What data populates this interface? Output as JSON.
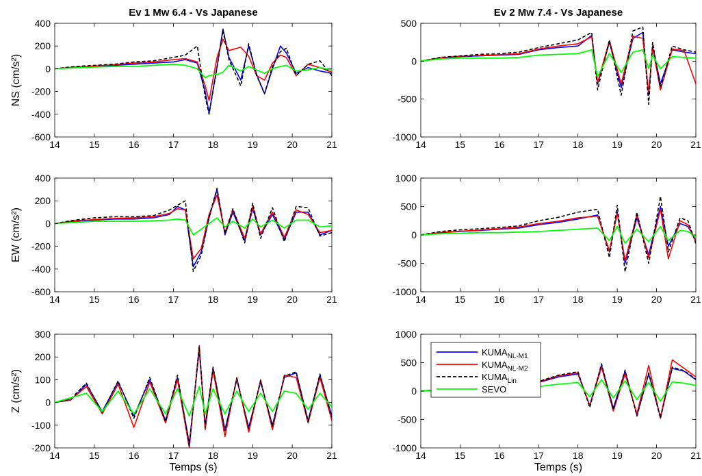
{
  "chart_data": [
    {
      "type": "line",
      "title": "Ev 1 Mw 6.4 - Vs Japanese",
      "xlabel": "",
      "ylabel": "NS (cm/s²)",
      "xlim": [
        14,
        21
      ],
      "ylim": [
        -600,
        400
      ],
      "xticks": [
        14,
        15,
        16,
        17,
        18,
        19,
        20,
        21
      ],
      "yticks": [
        -600,
        -400,
        -200,
        0,
        200,
        400
      ],
      "x": [
        14.0,
        14.5,
        15.0,
        15.5,
        16.0,
        16.5,
        17.0,
        17.3,
        17.6,
        17.8,
        17.9,
        18.1,
        18.25,
        18.4,
        18.7,
        18.9,
        19.1,
        19.3,
        19.5,
        19.7,
        19.85,
        20.1,
        20.4,
        20.7,
        21.0
      ],
      "series": [
        {
          "name": "KUMA_NL-M1",
          "values": [
            0,
            10,
            20,
            30,
            40,
            50,
            60,
            80,
            50,
            -200,
            -390,
            20,
            350,
            100,
            -100,
            200,
            -50,
            -220,
            0,
            200,
            140,
            -40,
            10,
            -20,
            -40
          ]
        },
        {
          "name": "KUMA_NL-M2",
          "values": [
            0,
            15,
            25,
            35,
            50,
            60,
            80,
            90,
            60,
            -150,
            -280,
            100,
            260,
            160,
            190,
            110,
            -60,
            -100,
            50,
            120,
            100,
            -60,
            40,
            10,
            -30
          ]
        },
        {
          "name": "KUMA_Lin",
          "values": [
            0,
            20,
            30,
            40,
            60,
            70,
            100,
            120,
            200,
            -250,
            -400,
            10,
            340,
            80,
            -150,
            220,
            -60,
            -220,
            20,
            150,
            180,
            -60,
            40,
            70,
            -60
          ]
        },
        {
          "name": "SEVO",
          "values": [
            0,
            8,
            15,
            20,
            20,
            30,
            40,
            30,
            0,
            -80,
            -60,
            -50,
            -30,
            30,
            -20,
            20,
            -10,
            -40,
            0,
            20,
            30,
            -20,
            -10,
            10,
            -10
          ]
        }
      ]
    },
    {
      "type": "line",
      "title": "Ev 2 Mw 7.4 - Vs Japanese",
      "xlabel": "",
      "ylabel": "",
      "xlim": [
        14,
        21
      ],
      "ylim": [
        -1000,
        500
      ],
      "xticks": [
        14,
        15,
        16,
        17,
        18,
        19,
        20,
        21
      ],
      "yticks": [
        -1000,
        -500,
        0,
        500
      ],
      "x": [
        14.0,
        14.5,
        15.0,
        15.5,
        16.0,
        16.5,
        17.0,
        17.5,
        18.0,
        18.35,
        18.5,
        18.8,
        19.1,
        19.4,
        19.65,
        19.8,
        19.9,
        20.1,
        20.4,
        20.7,
        21.0
      ],
      "series": [
        {
          "name": "KUMA_NL-M1",
          "values": [
            0,
            40,
            60,
            70,
            80,
            90,
            150,
            180,
            200,
            340,
            -300,
            250,
            -350,
            300,
            380,
            -450,
            200,
            -300,
            150,
            120,
            100
          ]
        },
        {
          "name": "KUMA_NL-M2",
          "values": [
            0,
            45,
            65,
            75,
            85,
            100,
            160,
            200,
            230,
            320,
            -280,
            270,
            -300,
            330,
            300,
            -420,
            180,
            -380,
            160,
            140,
            -300
          ]
        },
        {
          "name": "KUMA_Lin",
          "values": [
            0,
            50,
            70,
            90,
            100,
            120,
            180,
            230,
            280,
            380,
            -380,
            280,
            -450,
            400,
            450,
            -570,
            250,
            -350,
            200,
            150,
            120
          ]
        },
        {
          "name": "SEVO",
          "values": [
            0,
            30,
            40,
            40,
            40,
            50,
            80,
            90,
            100,
            150,
            -200,
            100,
            -150,
            120,
            150,
            -100,
            80,
            -100,
            60,
            50,
            40
          ]
        }
      ]
    },
    {
      "type": "line",
      "title": "",
      "xlabel": "",
      "ylabel": "EW (cm/s²)",
      "xlim": [
        14,
        21
      ],
      "ylim": [
        -600,
        400
      ],
      "xticks": [
        14,
        15,
        16,
        17,
        18,
        19,
        20,
        21
      ],
      "yticks": [
        -600,
        -400,
        -200,
        0,
        200,
        400
      ],
      "x": [
        14.0,
        14.5,
        15.0,
        15.5,
        16.0,
        16.5,
        16.9,
        17.1,
        17.3,
        17.5,
        17.7,
        17.9,
        18.1,
        18.3,
        18.5,
        18.8,
        19.0,
        19.2,
        19.5,
        19.8,
        20.1,
        20.4,
        20.7,
        21.0
      ],
      "series": [
        {
          "name": "KUMA_NL-M1",
          "values": [
            0,
            20,
            30,
            40,
            40,
            50,
            80,
            150,
            120,
            -380,
            -250,
            50,
            300,
            -100,
            100,
            -150,
            130,
            -100,
            80,
            -140,
            100,
            100,
            -100,
            -60
          ]
        },
        {
          "name": "KUMA_NL-M2",
          "values": [
            0,
            25,
            35,
            45,
            50,
            60,
            90,
            130,
            120,
            -310,
            -220,
            80,
            250,
            -80,
            120,
            -130,
            150,
            -90,
            100,
            -120,
            120,
            80,
            -80,
            -60
          ]
        },
        {
          "name": "KUMA_Lin",
          "values": [
            0,
            30,
            50,
            60,
            60,
            70,
            120,
            160,
            200,
            -420,
            -280,
            60,
            310,
            -90,
            130,
            -170,
            180,
            -130,
            140,
            -160,
            150,
            140,
            -110,
            -80
          ]
        },
        {
          "name": "SEVO",
          "values": [
            0,
            10,
            20,
            20,
            20,
            25,
            30,
            40,
            30,
            -100,
            -50,
            0,
            50,
            -30,
            20,
            -40,
            40,
            -30,
            30,
            -40,
            30,
            30,
            -30,
            -20
          ]
        }
      ]
    },
    {
      "type": "line",
      "title": "",
      "xlabel": "",
      "ylabel": "",
      "xlim": [
        14,
        21
      ],
      "ylim": [
        -1000,
        1000
      ],
      "xticks": [
        14,
        15,
        16,
        17,
        18,
        19,
        20,
        21
      ],
      "yticks": [
        -1000,
        -500,
        0,
        500,
        1000
      ],
      "x": [
        14.0,
        14.5,
        15.0,
        15.5,
        16.0,
        16.5,
        17.0,
        17.5,
        18.0,
        18.5,
        18.8,
        19.0,
        19.2,
        19.5,
        19.8,
        20.1,
        20.3,
        20.6,
        20.8,
        21.0
      ],
      "series": [
        {
          "name": "KUMA_NL-M1",
          "values": [
            0,
            40,
            60,
            80,
            100,
            120,
            180,
            220,
            280,
            350,
            -300,
            400,
            -500,
            300,
            -350,
            500,
            -200,
            200,
            150,
            -100
          ]
        },
        {
          "name": "KUMA_NL-M2",
          "values": [
            0,
            45,
            65,
            85,
            110,
            140,
            200,
            240,
            300,
            330,
            -280,
            380,
            -450,
            350,
            -400,
            450,
            -420,
            250,
            180,
            -120
          ]
        },
        {
          "name": "KUMA_Lin",
          "values": [
            0,
            60,
            90,
            110,
            130,
            160,
            250,
            310,
            400,
            450,
            -400,
            520,
            -650,
            400,
            -500,
            680,
            -300,
            300,
            250,
            -150
          ]
        },
        {
          "name": "SEVO",
          "values": [
            0,
            20,
            30,
            40,
            40,
            50,
            60,
            80,
            100,
            120,
            -100,
            150,
            -150,
            100,
            -120,
            150,
            -100,
            80,
            60,
            -40
          ]
        }
      ]
    },
    {
      "type": "line",
      "title": "",
      "xlabel": "Temps (s)",
      "ylabel": "Z (cm/s²)",
      "xlim": [
        14,
        21
      ],
      "ylim": [
        -200,
        300
      ],
      "xticks": [
        14,
        15,
        16,
        17,
        18,
        19,
        20,
        21
      ],
      "yticks": [
        -200,
        -100,
        0,
        100,
        200,
        300
      ],
      "x": [
        14.0,
        14.4,
        14.8,
        15.2,
        15.6,
        16.0,
        16.4,
        16.8,
        17.1,
        17.4,
        17.65,
        17.8,
        18.0,
        18.3,
        18.6,
        18.9,
        19.2,
        19.5,
        19.8,
        20.1,
        20.4,
        20.7,
        21.0
      ],
      "series": [
        {
          "name": "KUMA_NL-M1",
          "values": [
            0,
            10,
            80,
            -40,
            90,
            -60,
            100,
            -80,
            110,
            -180,
            230,
            -100,
            150,
            -120,
            100,
            -110,
            90,
            -100,
            110,
            130,
            -80,
            120,
            -60
          ]
        },
        {
          "name": "KUMA_NL-M2",
          "values": [
            0,
            12,
            70,
            -50,
            80,
            -110,
            90,
            -90,
            100,
            -200,
            250,
            -120,
            140,
            -150,
            110,
            -130,
            100,
            -120,
            120,
            110,
            -90,
            110,
            -80
          ]
        },
        {
          "name": "KUMA_Lin",
          "values": [
            0,
            15,
            85,
            -45,
            95,
            -70,
            110,
            -85,
            120,
            -190,
            245,
            -110,
            155,
            -125,
            105,
            -115,
            95,
            -105,
            115,
            135,
            -85,
            125,
            -65
          ]
        },
        {
          "name": "SEVO",
          "values": [
            0,
            20,
            40,
            -40,
            50,
            -50,
            60,
            -50,
            60,
            -60,
            70,
            -50,
            60,
            -50,
            50,
            -40,
            40,
            -40,
            50,
            40,
            -30,
            40,
            -20
          ]
        }
      ]
    },
    {
      "type": "line",
      "title": "",
      "xlabel": "Temps (s)",
      "ylabel": "",
      "xlim": [
        14,
        21
      ],
      "ylim": [
        -1000,
        1000
      ],
      "xticks": [
        14,
        15,
        16,
        17,
        18,
        19,
        20,
        21
      ],
      "yticks": [
        -1000,
        -500,
        0,
        500,
        1000
      ],
      "x": [
        14.0,
        14.5,
        15.0,
        15.5,
        16.0,
        16.5,
        17.0,
        17.5,
        18.0,
        18.3,
        18.6,
        18.9,
        19.2,
        19.5,
        19.8,
        20.1,
        20.4,
        20.7,
        21.0
      ],
      "series": [
        {
          "name": "KUMA_NL-M1",
          "values": [
            0,
            20,
            40,
            60,
            80,
            100,
            150,
            250,
            300,
            -250,
            450,
            -300,
            350,
            -420,
            300,
            -450,
            400,
            350,
            200
          ]
        },
        {
          "name": "KUMA_NL-M2",
          "values": [
            0,
            25,
            45,
            65,
            90,
            110,
            160,
            270,
            320,
            -260,
            420,
            -350,
            300,
            -400,
            450,
            -480,
            550,
            400,
            250
          ]
        },
        {
          "name": "KUMA_Lin",
          "values": [
            0,
            30,
            50,
            70,
            100,
            120,
            170,
            280,
            340,
            -290,
            480,
            -330,
            370,
            -440,
            320,
            -480,
            420,
            360,
            210
          ]
        },
        {
          "name": "SEVO",
          "values": [
            0,
            15,
            20,
            30,
            40,
            50,
            80,
            120,
            150,
            -100,
            200,
            -120,
            180,
            -150,
            150,
            -180,
            160,
            140,
            100
          ]
        }
      ]
    }
  ],
  "legend": {
    "placement": "top-left of bottom-right panel",
    "entries": [
      {
        "base": "KUMA",
        "sub": "NL-M1",
        "color": "#0000ff",
        "dash": false
      },
      {
        "base": "KUMA",
        "sub": "NL-M2",
        "color": "#ff0000",
        "dash": false
      },
      {
        "base": "KUMA",
        "sub": "Lin",
        "color": "#000000",
        "dash": true
      },
      {
        "base": "SEVO",
        "sub": "",
        "color": "#00ff00",
        "dash": false
      }
    ]
  },
  "series_colors": {
    "KUMA_NL-M1": "#0000ff",
    "KUMA_NL-M2": "#ff0000",
    "KUMA_Lin": "#000000",
    "SEVO": "#00ff00"
  }
}
